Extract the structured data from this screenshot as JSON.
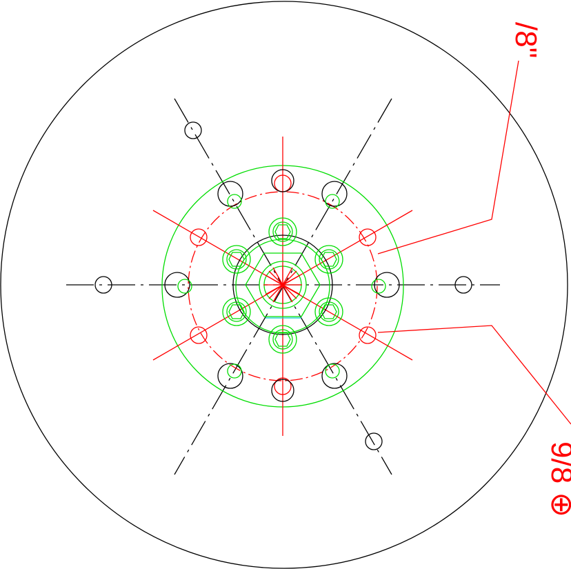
{
  "drawing": {
    "dimension_labels": {
      "top": "/8\"",
      "right": "9/8 ⊕"
    }
  },
  "colors": {
    "outline": "#000000",
    "dimension": "#ff0000",
    "bolt_circle": "#00dd00",
    "accent": "#00cccc",
    "background": "#ffffff"
  }
}
